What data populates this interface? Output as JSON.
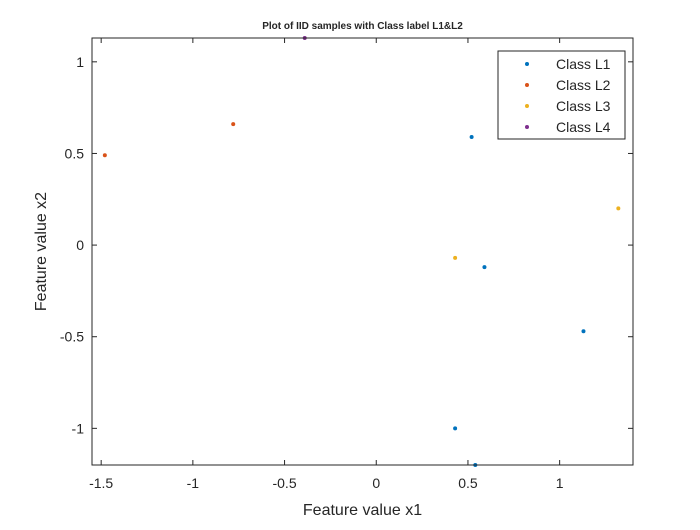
{
  "chart_data": {
    "type": "scatter",
    "title": "Plot of IID samples with Class label L1&L2",
    "xlabel": "Feature value x1",
    "ylabel": "Feature value x2",
    "xlim": [
      -1.55,
      1.4
    ],
    "ylim": [
      -1.2,
      1.13
    ],
    "xticks": [
      -1.5,
      -1,
      -0.5,
      0,
      0.5,
      1
    ],
    "xtick_labels": [
      "-1.5",
      "-1",
      "-0.5",
      "0",
      "0.5",
      "1"
    ],
    "yticks": [
      1,
      0.5,
      0,
      -0.5,
      -1
    ],
    "ytick_labels": [
      "1",
      "0.5",
      "0",
      "-0.5",
      "-1"
    ],
    "grid": false,
    "legend_position": "top-right",
    "series": [
      {
        "name": "Class L1",
        "color": "#0072BD",
        "points": [
          [
            0.52,
            0.59
          ],
          [
            0.59,
            -0.12
          ],
          [
            1.13,
            -0.47
          ],
          [
            0.43,
            -1.0
          ],
          [
            0.54,
            -1.2
          ]
        ]
      },
      {
        "name": "Class L2",
        "color": "#D95319",
        "points": [
          [
            -1.48,
            0.49
          ],
          [
            -0.78,
            0.66
          ]
        ]
      },
      {
        "name": "Class L3",
        "color": "#EDB120",
        "points": [
          [
            0.43,
            -0.07
          ],
          [
            1.32,
            0.2
          ]
        ]
      },
      {
        "name": "Class L4",
        "color": "#7E2F8E",
        "points": [
          [
            -0.39,
            1.13
          ]
        ]
      }
    ]
  }
}
